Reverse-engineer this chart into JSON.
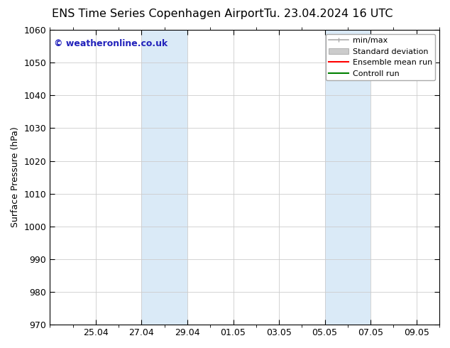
{
  "title_left": "ENS Time Series Copenhagen Airport",
  "title_right": "Tu. 23.04.2024 16 UTC",
  "ylabel": "Surface Pressure (hPa)",
  "ylim": [
    970,
    1060
  ],
  "yticks": [
    970,
    980,
    990,
    1000,
    1010,
    1020,
    1030,
    1040,
    1050,
    1060
  ],
  "xlim_min": 0,
  "xlim_max": 17,
  "xtick_labels": [
    "25.04",
    "27.04",
    "29.04",
    "01.05",
    "03.05",
    "05.05",
    "07.05",
    "09.05"
  ],
  "xtick_positions": [
    2,
    4,
    6,
    8,
    10,
    12,
    14,
    16
  ],
  "shaded_regions": [
    {
      "x_start": 4,
      "x_end": 6
    },
    {
      "x_start": 12,
      "x_end": 14
    }
  ],
  "shaded_color": "#daeaf7",
  "watermark_text": "© weatheronline.co.uk",
  "watermark_color": "#2222bb",
  "bg_color": "#ffffff",
  "title_fontsize": 11.5,
  "label_fontsize": 9,
  "tick_fontsize": 9,
  "legend_fontsize": 8,
  "minmax_color": "#aaaaaa",
  "stddev_color": "#cccccc",
  "ensemble_color": "red",
  "control_color": "green"
}
